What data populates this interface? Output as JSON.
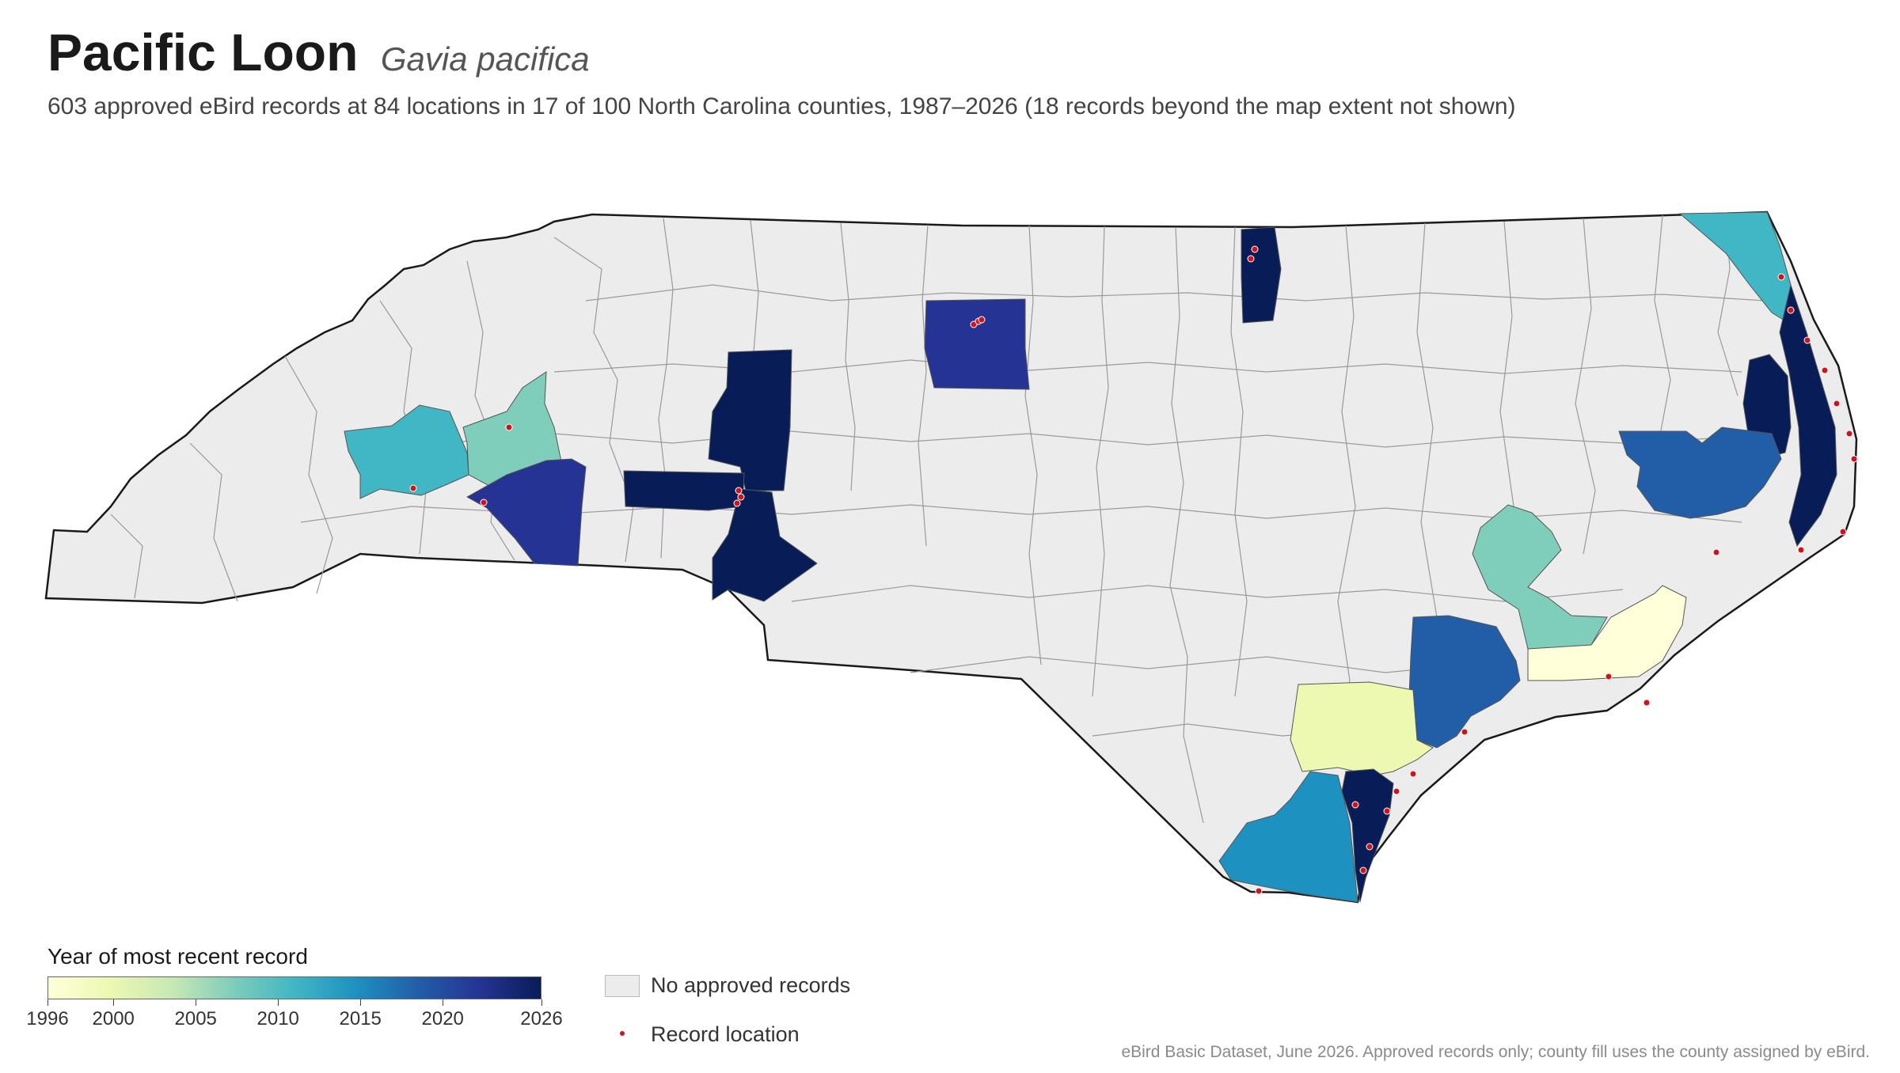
{
  "header": {
    "title": "Pacific Loon",
    "latin_name": "Gavia pacifica",
    "subtitle": "603 approved eBird records at 84 locations in 17 of 100 North Carolina counties, 1987–2026 (18 records beyond the map extent not shown)"
  },
  "colors": {
    "no_records": "#ececec",
    "record_dot": "#d1121a",
    "state_outline": "#1a1a1a",
    "county_border": "#9a9a9a",
    "scale": [
      "#ffffd9",
      "#edf8b1",
      "#c7e9b4",
      "#7fcdbb",
      "#41b6c4",
      "#1d91c0",
      "#225ea8",
      "#253494",
      "#081d58"
    ]
  },
  "legend": {
    "title": "Year of most recent record",
    "min_year": 1996,
    "max_year": 2026,
    "ticks": [
      "1996",
      "2000",
      "2005",
      "2010",
      "2015",
      "2020",
      "2026"
    ],
    "no_records_label": "No approved records",
    "record_location_label": "Record location"
  },
  "source_note": "eBird Basic Dataset, June 2026. Approved records only; county fill uses the county assigned by eBird."
}
